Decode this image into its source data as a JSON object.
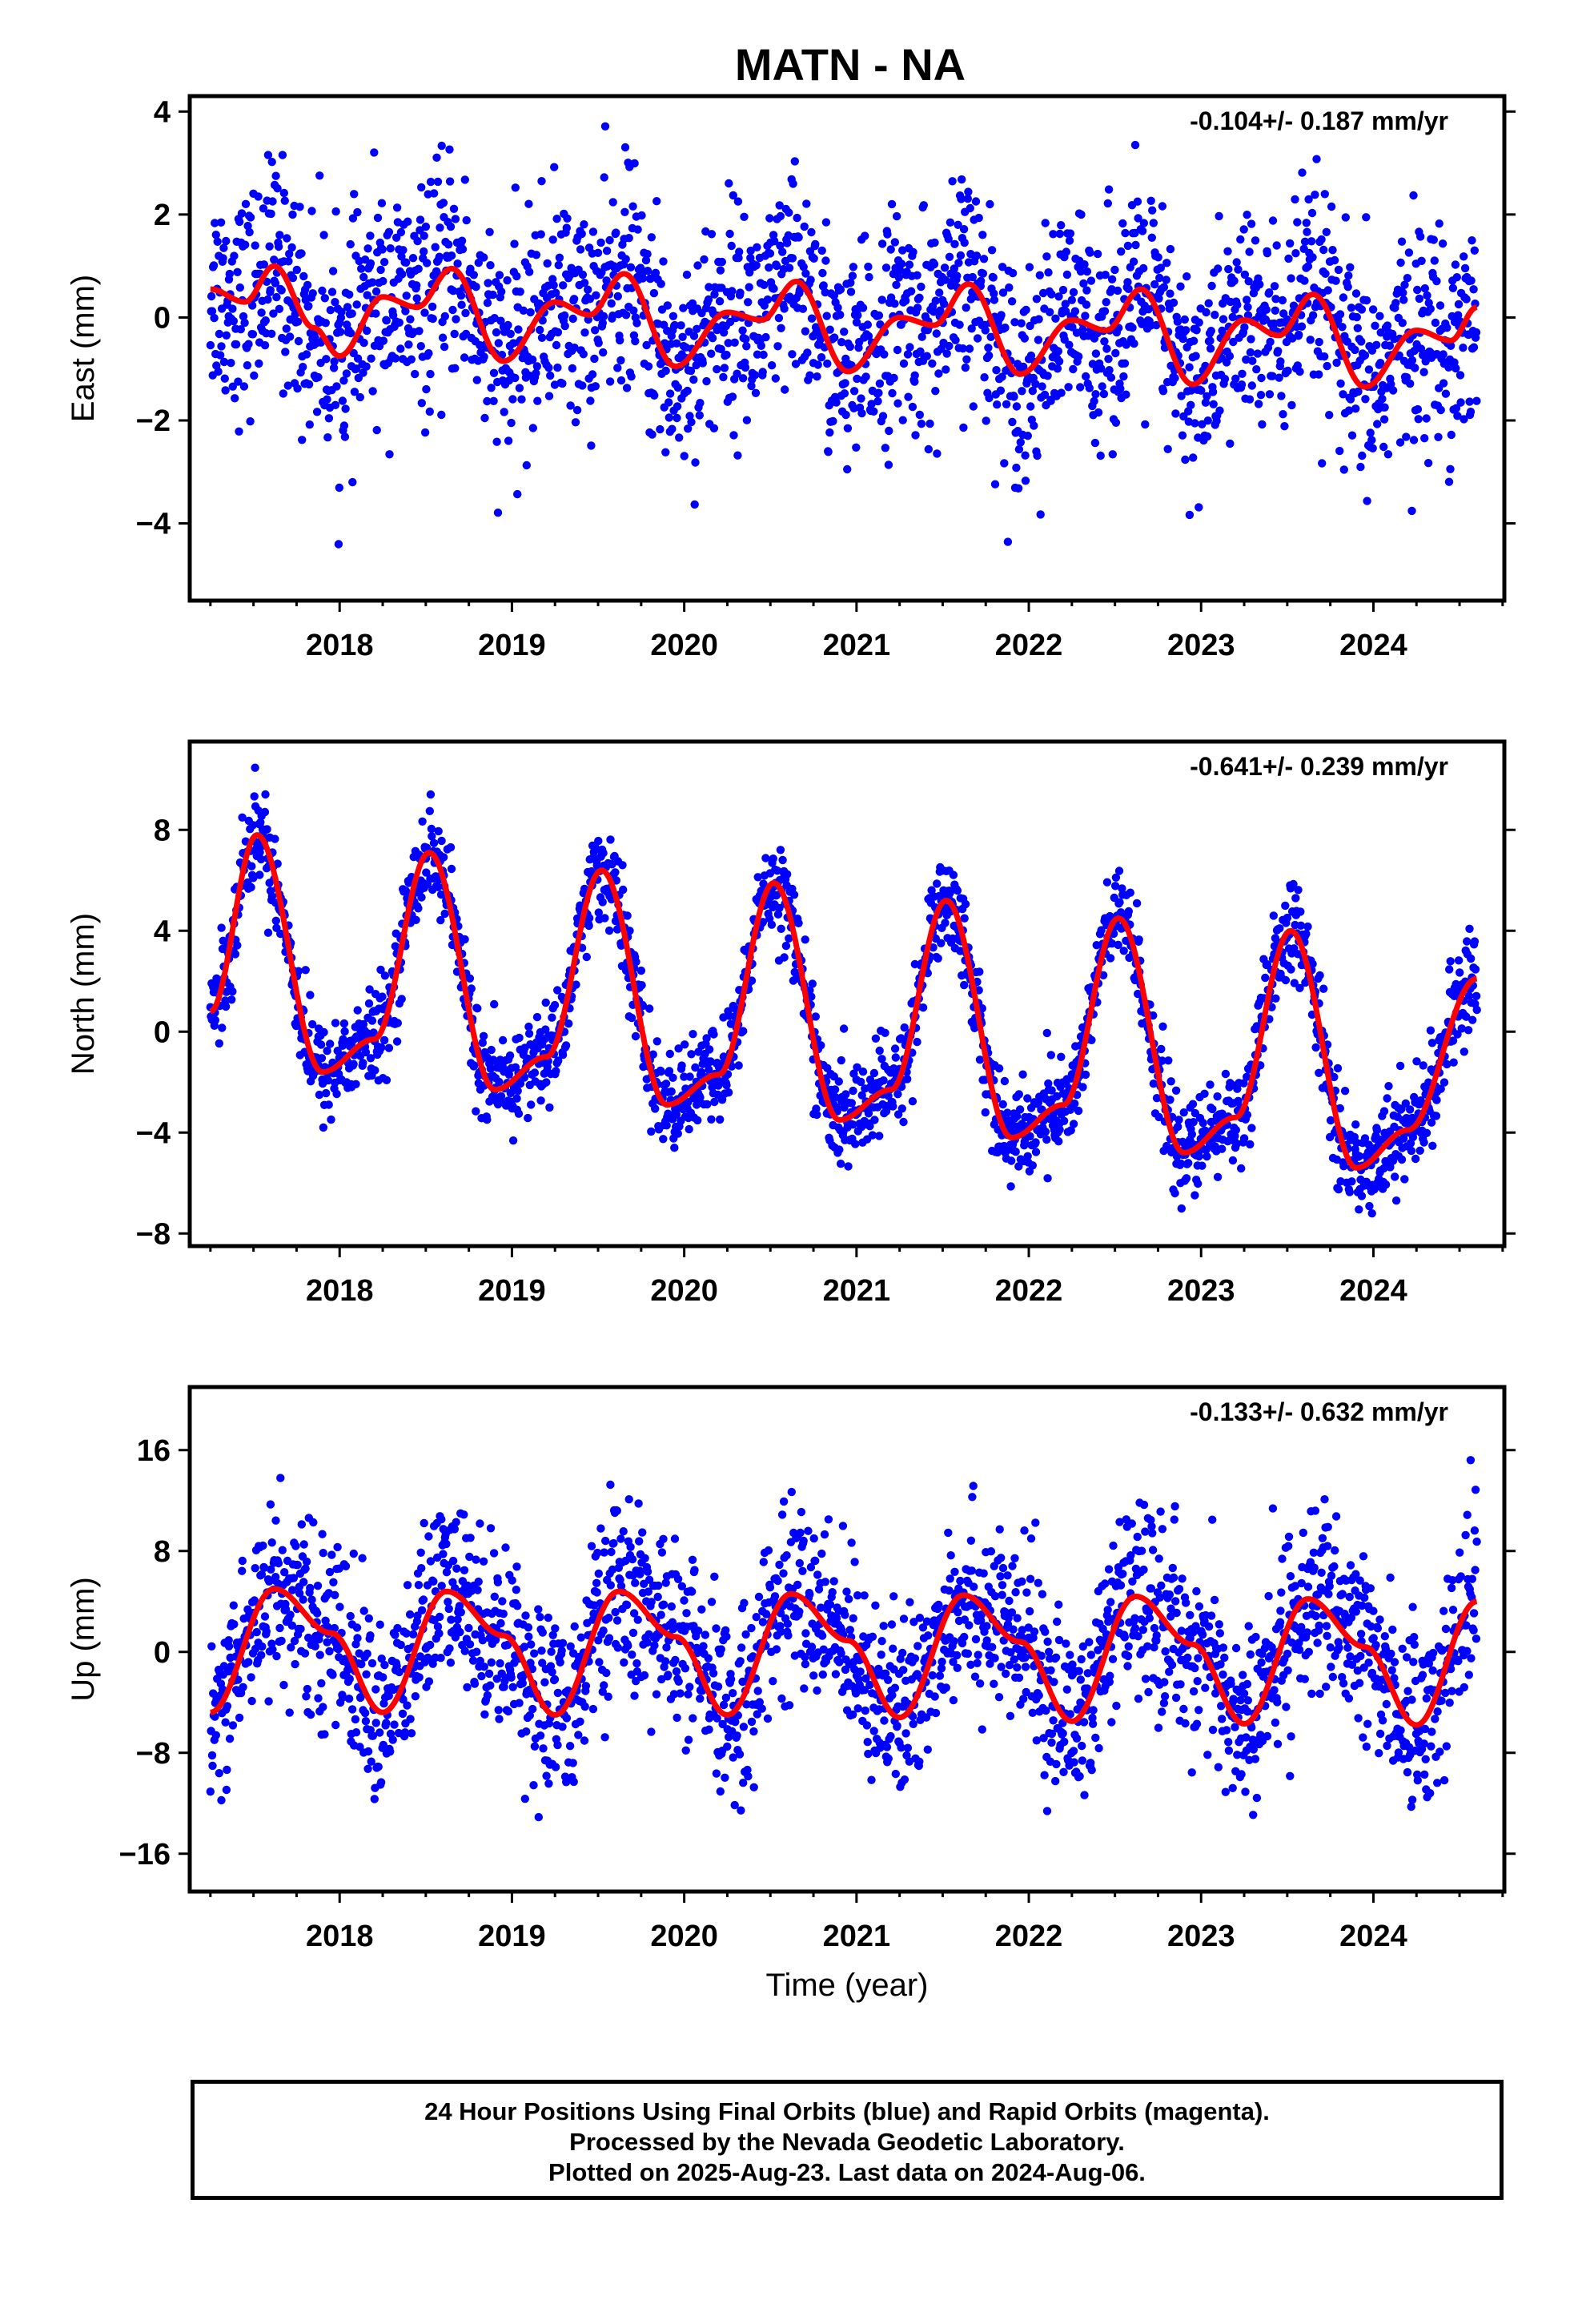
{
  "title": "MATN - NA",
  "xlabel": "Time (year)",
  "caption": {
    "line1": "24 Hour Positions Using Final Orbits (blue) and Rapid Orbits (magenta).",
    "line2": "Processed by the Nevada Geodetic Laboratory.",
    "line3": "Plotted on 2025-Aug-23. Last data on 2024-Aug-06."
  },
  "colors": {
    "points": "#0000ff",
    "fit": "#ff0000",
    "frame": "#000000"
  },
  "chart_data": [
    {
      "type": "scatter",
      "ylabel": "East (mm)",
      "rate": "-0.104+/- 0.187 mm/yr",
      "xlim": [
        2017.13,
        2024.76
      ],
      "ylim": [
        -5.5,
        4.3
      ],
      "x_ticks": [
        2018,
        2019,
        2020,
        2021,
        2022,
        2023,
        2024
      ],
      "y_ticks": [
        -4,
        -2,
        0,
        2,
        4
      ],
      "grid": false,
      "series": [
        {
          "name": "Final Orbits",
          "color": "#0000ff",
          "x_start": 2017.25,
          "x_end": 2024.6,
          "noise_sd": 1.05,
          "model": "east"
        },
        {
          "name": "fit",
          "color": "#ff0000",
          "x": [
            2017.25,
            2017.45,
            2017.62,
            2017.85,
            2018.0,
            2018.25,
            2018.45,
            2018.65,
            2018.95,
            2019.25,
            2019.45,
            2019.65,
            2019.95,
            2020.25,
            2020.45,
            2020.65,
            2020.95,
            2021.25,
            2021.45,
            2021.65,
            2021.95,
            2022.25,
            2022.45,
            2022.65,
            2022.95,
            2023.25,
            2023.45,
            2023.65,
            2023.95,
            2024.25,
            2024.45,
            2024.6
          ],
          "y": [
            0.55,
            0.3,
            1.0,
            -0.2,
            -0.75,
            0.4,
            0.2,
            0.95,
            -0.85,
            0.3,
            0.05,
            0.85,
            -0.95,
            0.1,
            -0.05,
            0.7,
            -1.05,
            0.0,
            -0.15,
            0.65,
            -1.1,
            -0.05,
            -0.25,
            0.55,
            -1.3,
            -0.05,
            -0.35,
            0.45,
            -1.35,
            -0.25,
            -0.45,
            0.2
          ]
        }
      ]
    },
    {
      "type": "scatter",
      "ylabel": "North (mm)",
      "rate": "-0.641+/- 0.239 mm/yr",
      "xlim": [
        2017.13,
        2024.76
      ],
      "ylim": [
        -8.5,
        11.5
      ],
      "x_ticks": [
        2018,
        2019,
        2020,
        2021,
        2022,
        2023,
        2024
      ],
      "y_ticks": [
        -8,
        -4,
        0,
        4,
        8
      ],
      "grid": false,
      "series": [
        {
          "name": "Final Orbits",
          "color": "#0000ff",
          "x_start": 2017.25,
          "x_end": 2024.6,
          "noise_sd": 0.95,
          "model": "north"
        },
        {
          "name": "fit",
          "color": "#ff0000",
          "x": [
            2017.25,
            2017.52,
            2017.9,
            2018.2,
            2018.52,
            2018.9,
            2019.2,
            2019.52,
            2019.9,
            2020.2,
            2020.52,
            2020.9,
            2021.2,
            2021.52,
            2021.9,
            2022.2,
            2022.52,
            2022.9,
            2023.2,
            2023.52,
            2023.9,
            2024.2,
            2024.6
          ],
          "y": [
            0.8,
            7.8,
            -1.6,
            -0.3,
            7.1,
            -2.3,
            -1.0,
            6.4,
            -2.9,
            -1.7,
            5.9,
            -3.5,
            -2.3,
            5.2,
            -4.2,
            -2.9,
            4.5,
            -4.8,
            -3.4,
            4.0,
            -5.4,
            -3.9,
            2.1
          ]
        }
      ]
    },
    {
      "type": "scatter",
      "ylabel": "Up (mm)",
      "rate": "-0.133+/- 0.632 mm/yr",
      "xlim": [
        2017.13,
        2024.76
      ],
      "ylim": [
        -19,
        21
      ],
      "x_ticks": [
        2018,
        2019,
        2020,
        2021,
        2022,
        2023,
        2024
      ],
      "y_ticks": [
        -16,
        -8,
        0,
        8,
        16
      ],
      "grid": false,
      "series": [
        {
          "name": "Final Orbits",
          "color": "#0000ff",
          "x_start": 2017.25,
          "x_end": 2024.6,
          "noise_sd": 3.6,
          "model": "up"
        },
        {
          "name": "fit",
          "color": "#ff0000",
          "x": [
            2017.25,
            2017.62,
            2017.95,
            2018.25,
            2018.62,
            2018.95,
            2019.25,
            2019.62,
            2019.95,
            2020.25,
            2020.62,
            2020.95,
            2021.25,
            2021.62,
            2021.95,
            2022.25,
            2022.62,
            2022.95,
            2023.25,
            2023.62,
            2023.95,
            2024.25,
            2024.6
          ],
          "y": [
            -4.8,
            5.0,
            1.5,
            -4.8,
            4.8,
            1.3,
            -5.0,
            4.8,
            1.2,
            -5.0,
            4.6,
            0.9,
            -5.2,
            4.5,
            0.8,
            -5.5,
            4.4,
            0.6,
            -5.7,
            4.2,
            0.4,
            -5.8,
            4.0
          ]
        }
      ]
    }
  ]
}
